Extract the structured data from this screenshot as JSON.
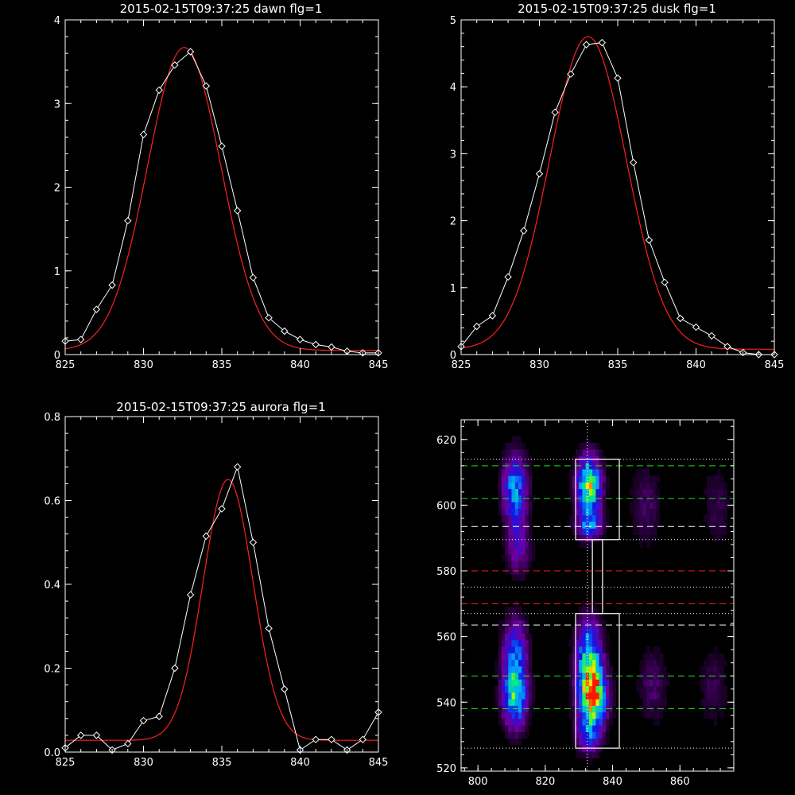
{
  "chart_data": [
    {
      "type": "line",
      "title": "2015-02-15T09:37:25 dawn flg=1",
      "xlim": [
        825,
        845
      ],
      "ylim": [
        0,
        4
      ],
      "xticks": [
        "825",
        "830",
        "835",
        "840",
        "845"
      ],
      "yticks": [
        "0",
        "1",
        "2",
        "3",
        "4"
      ],
      "grid": false,
      "series": [
        {
          "color": "#ffffff",
          "marker": "diamond",
          "x": [
            825,
            826,
            827,
            828,
            829,
            830,
            831,
            832,
            833,
            834,
            835,
            836,
            837,
            838,
            839,
            840,
            841,
            842,
            843,
            844,
            845
          ],
          "y": [
            0.16,
            0.18,
            0.54,
            0.83,
            1.6,
            2.63,
            3.16,
            3.46,
            3.62,
            3.21,
            2.49,
            1.72,
            0.92,
            0.44,
            0.28,
            0.18,
            0.12,
            0.09,
            0.04,
            0.02,
            0.02
          ]
        },
        {
          "color": "#ff2020",
          "fit": "gaussian",
          "center": 832.6,
          "amplitude": 3.62,
          "sigma": 2.35,
          "baseline": 0.05
        }
      ]
    },
    {
      "type": "line",
      "title": "2015-02-15T09:37:25 dusk flg=1",
      "xlim": [
        825,
        845
      ],
      "ylim": [
        0,
        5
      ],
      "xticks": [
        "825",
        "830",
        "835",
        "840",
        "845"
      ],
      "yticks": [
        "0",
        "1",
        "2",
        "3",
        "4",
        "5"
      ],
      "grid": false,
      "series": [
        {
          "color": "#ffffff",
          "marker": "diamond",
          "x": [
            825,
            826,
            827,
            828,
            829,
            830,
            831,
            832,
            833,
            834,
            835,
            836,
            837,
            838,
            839,
            840,
            841,
            842,
            843,
            844,
            845
          ],
          "y": [
            0.12,
            0.42,
            0.58,
            1.16,
            1.85,
            2.7,
            3.62,
            4.19,
            4.63,
            4.66,
            4.13,
            2.87,
            1.71,
            1.08,
            0.54,
            0.41,
            0.28,
            0.12,
            0.03,
            0.0,
            0.0
          ]
        },
        {
          "color": "#ff2020",
          "fit": "gaussian",
          "center": 833.1,
          "amplitude": 4.67,
          "sigma": 2.45,
          "baseline": 0.08
        }
      ]
    },
    {
      "type": "line",
      "title": "2015-02-15T09:37:25 aurora flg=1",
      "xlim": [
        825,
        845
      ],
      "ylim": [
        0,
        0.8
      ],
      "xticks": [
        "825",
        "830",
        "835",
        "840",
        "845"
      ],
      "yticks": [
        "0.0",
        "0.2",
        "0.4",
        "0.6",
        "0.8"
      ],
      "grid": false,
      "series": [
        {
          "color": "#ffffff",
          "marker": "diamond",
          "x": [
            825,
            826,
            827,
            828,
            829,
            830,
            831,
            832,
            833,
            834,
            835,
            836,
            837,
            838,
            839,
            840,
            841,
            842,
            843,
            844,
            845
          ],
          "y": [
            0.01,
            0.04,
            0.04,
            0.005,
            0.02,
            0.075,
            0.085,
            0.2,
            0.375,
            0.515,
            0.58,
            0.68,
            0.5,
            0.295,
            0.15,
            0.005,
            0.03,
            0.03,
            0.005,
            0.03,
            0.095
          ]
        },
        {
          "color": "#ff2020",
          "fit": "gaussian",
          "center": 835.4,
          "amplitude": 0.622,
          "sigma": 1.6,
          "baseline": 0.028
        }
      ]
    },
    {
      "type": "heatmap",
      "title": "",
      "xlim": [
        795,
        876
      ],
      "ylim": [
        519,
        626
      ],
      "xticks": [
        "800",
        "820",
        "840",
        "860"
      ],
      "yticks": [
        "520",
        "540",
        "560",
        "580",
        "600",
        "620"
      ],
      "colormap": "rainbow",
      "blobs": [
        {
          "x": 811,
          "y": 605,
          "sx": 2.5,
          "sy": 7,
          "amp": 0.55
        },
        {
          "x": 812,
          "y": 587,
          "sx": 2.5,
          "sy": 6,
          "amp": 0.25
        },
        {
          "x": 811,
          "y": 543,
          "sx": 2.5,
          "sy": 7,
          "amp": 0.72
        },
        {
          "x": 811,
          "y": 558,
          "sx": 2.5,
          "sy": 6,
          "amp": 0.35
        },
        {
          "x": 833,
          "y": 606,
          "sx": 2.5,
          "sy": 6,
          "amp": 0.8
        },
        {
          "x": 833,
          "y": 594,
          "sx": 2.5,
          "sy": 3,
          "amp": 0.45
        },
        {
          "x": 834,
          "y": 542,
          "sx": 2.8,
          "sy": 6,
          "amp": 1.0
        },
        {
          "x": 833,
          "y": 555,
          "sx": 2.5,
          "sy": 7,
          "amp": 0.6
        },
        {
          "x": 833,
          "y": 530,
          "sx": 2.5,
          "sy": 4,
          "amp": 0.35
        },
        {
          "x": 850,
          "y": 600,
          "sx": 3,
          "sy": 8,
          "amp": 0.15
        },
        {
          "x": 852,
          "y": 545,
          "sx": 3,
          "sy": 8,
          "amp": 0.15
        },
        {
          "x": 871,
          "y": 600,
          "sx": 3,
          "sy": 8,
          "amp": 0.12
        },
        {
          "x": 870,
          "y": 545,
          "sx": 3,
          "sy": 8,
          "amp": 0.12
        }
      ],
      "hlines": [
        {
          "y": 612,
          "color": "#22dd22",
          "style": "dashed"
        },
        {
          "y": 602,
          "color": "#22dd22",
          "style": "dashed"
        },
        {
          "y": 548,
          "color": "#22dd22",
          "style": "dashed"
        },
        {
          "y": 538,
          "color": "#22dd22",
          "style": "dashed"
        },
        {
          "y": 593.5,
          "color": "#ffffff",
          "style": "dashed"
        },
        {
          "y": 563.5,
          "color": "#ffffff",
          "style": "dashed"
        },
        {
          "y": 580,
          "color": "#ff2020",
          "style": "dashed"
        },
        {
          "y": 570,
          "color": "#ff2020",
          "style": "dashed"
        },
        {
          "y": 614,
          "color": "#ffffff",
          "style": "dotted"
        },
        {
          "y": 589.5,
          "color": "#ffffff",
          "style": "dotted"
        },
        {
          "y": 575,
          "color": "#ffffff",
          "style": "dotted"
        },
        {
          "y": 567,
          "color": "#ffffff",
          "style": "dotted"
        },
        {
          "y": 526,
          "color": "#ffffff",
          "style": "dotted"
        }
      ],
      "vlines": [
        {
          "x": 832.5,
          "color": "#ffffff",
          "style": "dotted"
        }
      ],
      "boxes": [
        {
          "x0": 829,
          "x1": 842,
          "y0": 589.5,
          "y1": 614
        },
        {
          "x0": 829,
          "x1": 842,
          "y0": 526,
          "y1": 567
        },
        {
          "x0": 834,
          "x1": 837,
          "y0": 567,
          "y1": 589.5
        }
      ]
    }
  ]
}
